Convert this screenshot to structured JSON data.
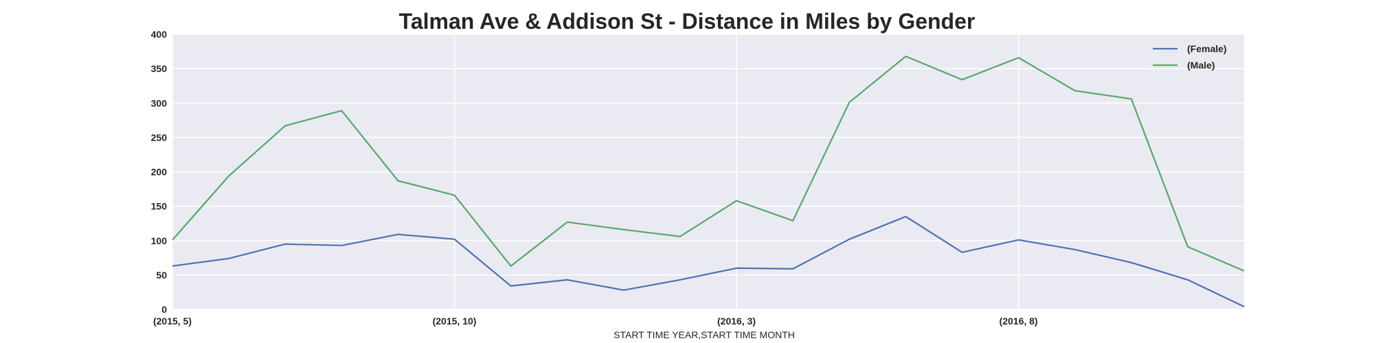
{
  "chart_data": {
    "type": "line",
    "title": "Talman Ave & Addison St - Distance in Miles by Gender",
    "xlabel": "START TIME YEAR,START TIME MONTH",
    "ylabel": "",
    "x": [
      "(2015, 5)",
      "(2015, 6)",
      "(2015, 7)",
      "(2015, 8)",
      "(2015, 9)",
      "(2015, 10)",
      "(2015, 11)",
      "(2015, 12)",
      "(2016, 1)",
      "(2016, 2)",
      "(2016, 3)",
      "(2016, 4)",
      "(2016, 5)",
      "(2016, 6)",
      "(2016, 7)",
      "(2016, 8)",
      "(2016, 9)",
      "(2016, 10)",
      "(2016, 11)",
      "(2016, 12)"
    ],
    "x_tick_labels": [
      "(2015, 5)",
      "(2015, 10)",
      "(2016, 3)",
      "(2016, 8)"
    ],
    "ylim": [
      0,
      400
    ],
    "y_ticks": [
      0,
      50,
      100,
      150,
      200,
      250,
      300,
      350,
      400
    ],
    "grid": true,
    "legend_position": "top-right",
    "series": [
      {
        "name": "(Female)",
        "color": "#4c72b0",
        "values": [
          63,
          74,
          95,
          93,
          109,
          102,
          34,
          43,
          28,
          43,
          60,
          59,
          102,
          135,
          83,
          101,
          87,
          68,
          43,
          4
        ]
      },
      {
        "name": "(Male)",
        "color": "#55a868",
        "values": [
          101,
          194,
          267,
          289,
          187,
          166,
          63,
          127,
          116,
          106,
          158,
          129,
          301,
          368,
          334,
          366,
          318,
          306,
          91,
          56
        ]
      }
    ]
  }
}
